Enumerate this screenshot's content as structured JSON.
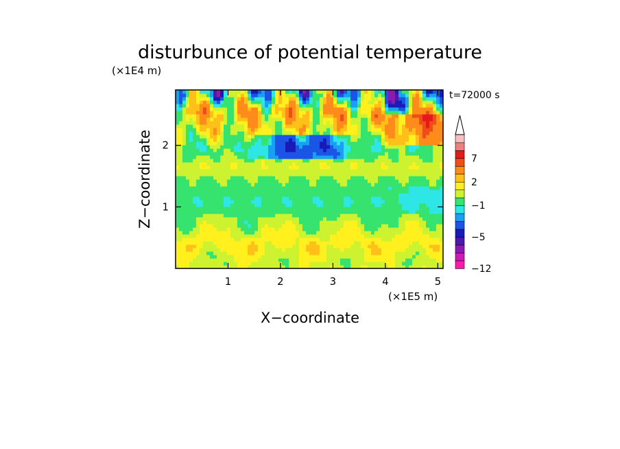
{
  "chart_data": {
    "type": "heatmap",
    "title": "disturbunce of potential temperature",
    "xlabel": "X−coordinate",
    "ylabel": "Z−coordinate",
    "x_scale_label": "(×1E5 m)",
    "y_scale_label": "(×1E4 m)",
    "time_label": "t=72000 s",
    "xlim": [
      0,
      5.1
    ],
    "ylim": [
      0,
      2.9
    ],
    "x_ticks": [
      "1",
      "2",
      "3",
      "4",
      "5"
    ],
    "y_ticks": [
      "1",
      "2"
    ],
    "colorbar": {
      "levels": [
        -12,
        -10,
        -8,
        -6,
        -5,
        -4,
        -3,
        -2,
        -1,
        0,
        1,
        2,
        3,
        5,
        7,
        9,
        11
      ],
      "colors": [
        "#ff1aa8",
        "#cc1ab8",
        "#8c1ab0",
        "#4d1aa8",
        "#1a1ab8",
        "#1a55e6",
        "#19a0f0",
        "#2ee6e6",
        "#36e36e",
        "#ccf230",
        "#fff01e",
        "#ffc01a",
        "#ff8c1a",
        "#f04c1a",
        "#e61a1a",
        "#f08080",
        "#f7c0c0"
      ],
      "labels": [
        "7",
        "2",
        "−1",
        "−5",
        "−12"
      ],
      "label_values": [
        7,
        2,
        -1,
        -5,
        -12
      ]
    },
    "field": {
      "description_of_bands": "z from bottom to top",
      "rows": [
        {
          "z": 0.1,
          "value": 0.6
        },
        {
          "z": 0.4,
          "value": 1.5
        },
        {
          "z": 0.75,
          "value": 0.2
        },
        {
          "z": 1.1,
          "value": -0.8
        },
        {
          "z": 1.4,
          "value": -0.4
        },
        {
          "z": 1.65,
          "value": 0.8
        },
        {
          "z": 1.95,
          "value": -0.6
        },
        {
          "z": 2.25,
          "value": 1.2
        },
        {
          "z": 2.55,
          "value": 2.4
        },
        {
          "z": 2.85,
          "value": -1.5
        }
      ]
    }
  }
}
